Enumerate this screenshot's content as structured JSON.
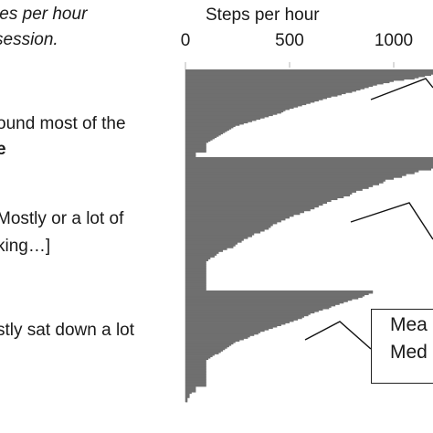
{
  "left_text": {
    "line1": "tes per hour",
    "line2": "session.",
    "g1_line1": "ound most of the",
    "g1_line2": "e",
    "g2_line1": "Mostly or a lot of",
    "g2_line2": "king…]",
    "g3_line1": "stly sat down a lot"
  },
  "callout": {
    "line1": "Mea",
    "line2": "Med"
  },
  "chart_data": {
    "type": "bar",
    "xlabel": "Steps per hour",
    "xlim": [
      0,
      1200
    ],
    "ticks": [
      {
        "value": 0,
        "label": "0"
      },
      {
        "value": 500,
        "label": "500"
      },
      {
        "value": 1000,
        "label": "1000"
      }
    ],
    "groups": [
      {
        "name": "ound most of the",
        "values": [
          1200,
          1200,
          1200,
          1200,
          1180,
          1150,
          1120,
          1100,
          1050,
          1000,
          980,
          950,
          920,
          900,
          880,
          860,
          840,
          820,
          800,
          770,
          750,
          730,
          700,
          680,
          660,
          640,
          620,
          600,
          580,
          560,
          540,
          520,
          500,
          480,
          470,
          460,
          440,
          420,
          400,
          380,
          360,
          340,
          320,
          300,
          280,
          260,
          240,
          230,
          220,
          210,
          200,
          190,
          180,
          170,
          160,
          150,
          140,
          130,
          120,
          110,
          100,
          100,
          100,
          100,
          100,
          100,
          100,
          100,
          50,
          50,
          50,
          50
        ]
      },
      {
        "name": "Mostly or a lot of",
        "values": [
          1200,
          1200,
          1200,
          1200,
          1200,
          1200,
          1180,
          1120,
          1100,
          1060,
          1040,
          1000,
          960,
          950,
          930,
          900,
          880,
          850,
          820,
          800,
          790,
          760,
          730,
          700,
          680,
          660,
          640,
          620,
          600,
          570,
          550,
          520,
          500,
          480,
          460,
          440,
          420,
          410,
          400,
          380,
          360,
          330,
          320,
          300,
          280,
          270,
          250,
          240,
          230,
          200,
          180,
          160,
          150,
          140,
          120,
          110,
          100,
          100,
          100,
          100,
          100,
          100,
          100,
          100,
          100,
          100,
          100,
          100,
          100,
          100,
          100,
          100
        ]
      },
      {
        "name": "stly sat down a lot",
        "values": [
          900,
          900,
          880,
          860,
          850,
          830,
          800,
          780,
          760,
          740,
          720,
          700,
          690,
          660,
          640,
          620,
          600,
          590,
          570,
          560,
          540,
          520,
          500,
          480,
          460,
          440,
          420,
          400,
          380,
          360,
          350,
          330,
          310,
          300,
          280,
          260,
          240,
          230,
          220,
          210,
          200,
          190,
          180,
          170,
          160,
          140,
          130,
          120,
          110,
          100,
          100,
          100,
          100,
          100,
          100,
          100,
          100,
          100,
          100,
          100,
          100,
          100,
          100,
          100,
          100,
          100,
          100,
          100,
          50,
          50,
          50,
          50,
          30,
          20,
          20,
          20,
          10,
          10,
          10
        ]
      }
    ],
    "color": "#6f6f6f"
  }
}
